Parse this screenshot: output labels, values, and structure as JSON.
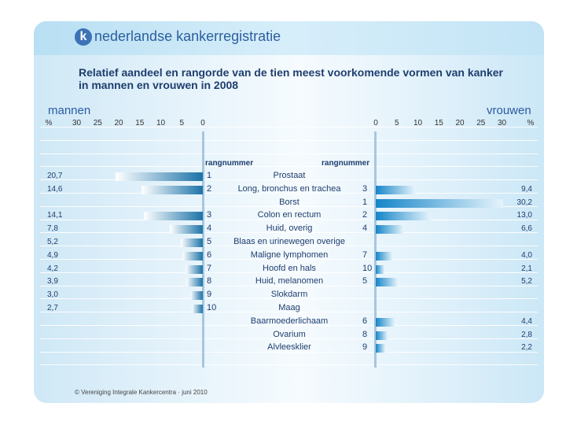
{
  "brand": {
    "logo_letter": "k",
    "name": "nederlandse kankerregistratie"
  },
  "title": {
    "line1": "Relatief aandeel en rangorde van de tien meest voorkomende vormen van kanker",
    "line2": "in mannen en vrouwen in 2008"
  },
  "labels": {
    "men": "mannen",
    "women": "vrouwen",
    "percent": "%",
    "rank_header": "rangnummer"
  },
  "men_ticks": [
    "30",
    "25",
    "20",
    "15",
    "10",
    "5",
    "0"
  ],
  "women_ticks": [
    "0",
    "5",
    "10",
    "15",
    "20",
    "25",
    "30"
  ],
  "footer": "© Vereniging Integrale Kankercentra · juni 2010",
  "colors": {
    "men_bar": "#1c73a8",
    "women_bar": "#1585c8",
    "text": "#1f3e6e"
  },
  "chart_data": {
    "type": "bar",
    "orientation": "horizontal",
    "title": "Relatief aandeel en rangorde van de tien meest voorkomende vormen van kanker in mannen en vrouwen in 2008",
    "xlabel": "%",
    "xlim": [
      0,
      30
    ],
    "categories": [
      "Prostaat",
      "Long, bronchus en trachea",
      "Borst",
      "Colon en rectum",
      "Huid, overig",
      "Blaas en urinewegen overige",
      "Maligne lymphomen",
      "Hoofd en hals",
      "Huid, melanomen",
      "Slokdarm",
      "Maag",
      "Baarmoederlichaam",
      "Ovarium",
      "Alvleesklier"
    ],
    "series": [
      {
        "name": "mannen",
        "values": [
          20.7,
          14.6,
          null,
          14.1,
          7.8,
          5.2,
          4.9,
          4.2,
          3.9,
          3.0,
          2.7,
          null,
          null,
          null
        ],
        "labels": [
          "20,7",
          "14,6",
          "",
          "14,1",
          "7,8",
          "5,2",
          "4,9",
          "4,2",
          "3,9",
          "3,0",
          "2,7",
          "",
          "",
          ""
        ],
        "ranks": [
          "1",
          "2",
          "",
          "3",
          "4",
          "5",
          "6",
          "7",
          "8",
          "9",
          "10",
          "",
          "",
          ""
        ]
      },
      {
        "name": "vrouwen",
        "values": [
          null,
          9.4,
          30.2,
          13.0,
          6.6,
          null,
          4.0,
          2.1,
          5.2,
          null,
          null,
          4.4,
          2.8,
          2.2
        ],
        "labels": [
          "",
          "9,4",
          "30,2",
          "13,0",
          "6,6",
          "",
          "4,0",
          "2,1",
          "5,2",
          "",
          "",
          "4,4",
          "2,8",
          "2,2"
        ],
        "ranks": [
          "",
          "3",
          "1",
          "2",
          "4",
          "",
          "7",
          "10",
          "5",
          "",
          "",
          "6",
          "8",
          "9"
        ]
      }
    ]
  }
}
